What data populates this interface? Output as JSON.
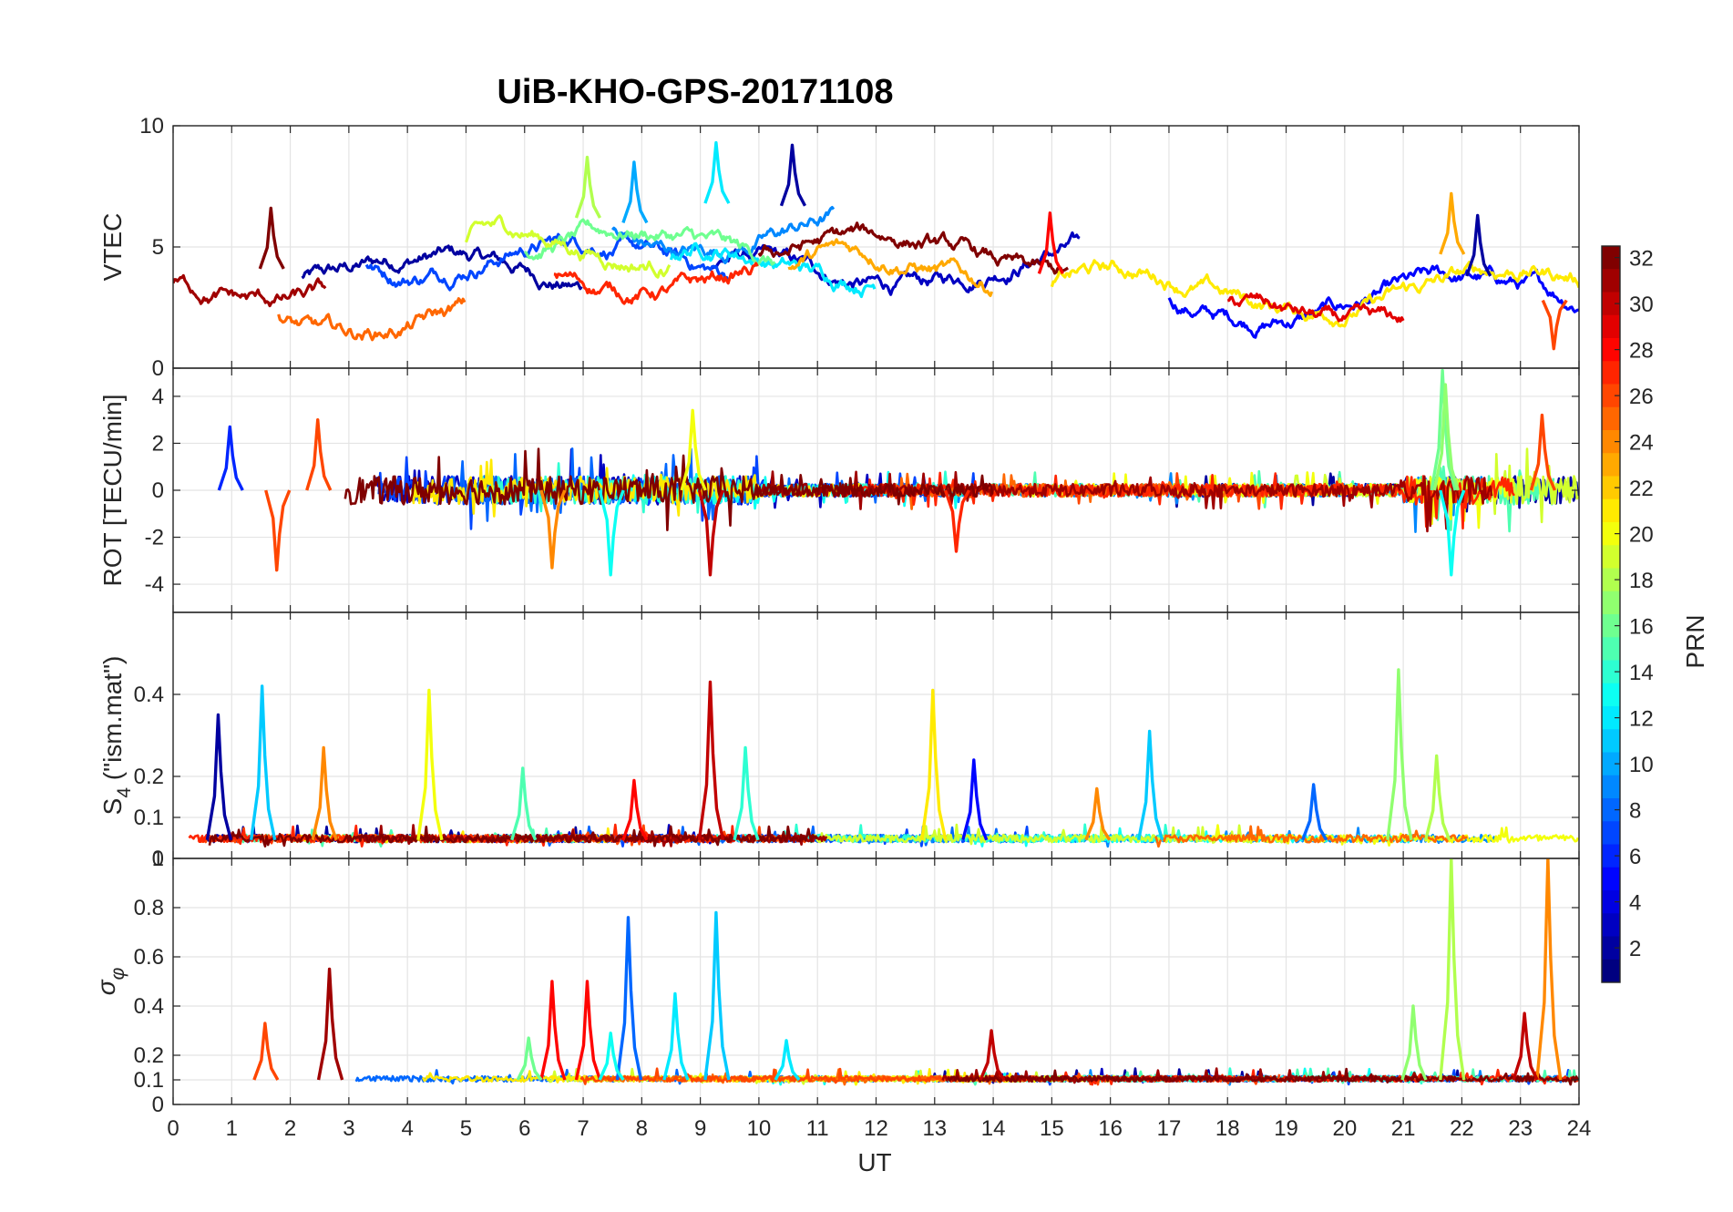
{
  "chart_data": {
    "type": "line",
    "title": "UiB-KHO-GPS-20171108",
    "xlabel": "UT",
    "xlim": [
      0,
      24
    ],
    "xticks": [
      "0",
      "1",
      "2",
      "3",
      "4",
      "5",
      "6",
      "7",
      "8",
      "9",
      "10",
      "11",
      "12",
      "13",
      "14",
      "15",
      "16",
      "17",
      "18",
      "19",
      "20",
      "21",
      "22",
      "23",
      "24"
    ],
    "panels": [
      {
        "name": "vtec",
        "ylabel": "VTEC",
        "ylim": [
          0,
          10
        ],
        "yticks": [
          0,
          5,
          10
        ],
        "ytick_labels": [
          "0",
          "5",
          "10"
        ],
        "baseline": 3.4,
        "noise": 0.7,
        "series": [
          {
            "prn": 2,
            "start": 2.2,
            "end": 7.0,
            "level": 3.8
          },
          {
            "prn": 3,
            "start": 9.2,
            "end": 15.5,
            "level": 4.2
          },
          {
            "prn": 5,
            "start": 17.0,
            "end": 24.0,
            "level": 2.8
          },
          {
            "prn": 7,
            "start": 3.3,
            "end": 9.5,
            "level": 4.4
          },
          {
            "prn": 9,
            "start": 7.5,
            "end": 11.3,
            "level": 5.6
          },
          {
            "prn": 12,
            "start": 8.5,
            "end": 12.0,
            "level": 4.5
          },
          {
            "prn": 16,
            "start": 6.0,
            "end": 10.3,
            "level": 4.8
          },
          {
            "prn": 19,
            "start": 5.0,
            "end": 8.5,
            "level": 5.2
          },
          {
            "prn": 21,
            "start": 15.0,
            "end": 24.0,
            "level": 3.2
          },
          {
            "prn": 23,
            "start": 10.5,
            "end": 14.0,
            "level": 4.0
          },
          {
            "prn": 25,
            "start": 1.8,
            "end": 5.0,
            "level": 2.2
          },
          {
            "prn": 27,
            "start": 6.5,
            "end": 10.0,
            "level": 4.0
          },
          {
            "prn": 29,
            "start": 18.0,
            "end": 21.0,
            "level": 2.6
          },
          {
            "prn": 31,
            "start": 0.0,
            "end": 2.6,
            "level": 3.6
          },
          {
            "prn": 32,
            "start": 10.0,
            "end": 15.3,
            "level": 4.6
          }
        ],
        "peaks": [
          {
            "prn": 2,
            "t": 10.6,
            "v": 9.2
          },
          {
            "prn": 12,
            "t": 9.3,
            "v": 9.3
          },
          {
            "prn": 18,
            "t": 7.1,
            "v": 8.7
          },
          {
            "prn": 10,
            "t": 7.9,
            "v": 8.5
          },
          {
            "prn": 23,
            "t": 21.85,
            "v": 7.2
          },
          {
            "prn": 32,
            "t": 1.7,
            "v": 6.6
          },
          {
            "prn": 28,
            "t": 15.0,
            "v": 6.4
          },
          {
            "prn": 2,
            "t": 22.3,
            "v": 6.3
          },
          {
            "prn": 26,
            "t": 23.6,
            "v": 0.8
          }
        ]
      },
      {
        "name": "rot",
        "ylabel": "ROT [TECU/min]",
        "ylim": [
          -5.2,
          5.2
        ],
        "yticks": [
          -4,
          -2,
          0,
          2,
          4
        ],
        "ytick_labels": [
          "-4",
          "-2",
          "0",
          "2",
          "4"
        ],
        "baseline": 0,
        "noise": 0.6,
        "peaks": [
          {
            "prn": 16,
            "t": 21.7,
            "v": 5.1
          },
          {
            "prn": 17,
            "t": 21.75,
            "v": 4.5
          },
          {
            "prn": 26,
            "t": 23.4,
            "v": 3.2
          },
          {
            "prn": 20,
            "t": 8.9,
            "v": 3.4
          },
          {
            "prn": 30,
            "t": 9.2,
            "v": -3.6
          },
          {
            "prn": 13,
            "t": 21.85,
            "v": -3.6
          },
          {
            "prn": 13,
            "t": 7.5,
            "v": -3.6
          },
          {
            "prn": 26,
            "t": 1.8,
            "v": -3.4
          },
          {
            "prn": 24,
            "t": 6.5,
            "v": -3.3
          },
          {
            "prn": 26,
            "t": 2.5,
            "v": 3.0
          },
          {
            "prn": 6,
            "t": 1.0,
            "v": 2.7
          },
          {
            "prn": 27,
            "t": 13.4,
            "v": -2.6
          }
        ]
      },
      {
        "name": "s4",
        "ylabel": "S4 (\"ism.mat\")",
        "ylabel_main": "S",
        "ylabel_sub": "4",
        "ylabel_rest": " (\"ism.mat\")",
        "ylim": [
          0,
          0.6
        ],
        "yticks": [
          0,
          0.1,
          0.2,
          0.4
        ],
        "ytick_labels": [
          "0",
          "0.1",
          "0.2",
          "0.4"
        ],
        "baseline": 0.045,
        "noise": 0.018,
        "peaks": [
          {
            "prn": 30,
            "t": 9.2,
            "v": 0.43
          },
          {
            "prn": 17,
            "t": 20.95,
            "v": 0.46
          },
          {
            "prn": 11,
            "t": 1.55,
            "v": 0.42
          },
          {
            "prn": 21,
            "t": 13.0,
            "v": 0.41
          },
          {
            "prn": 20,
            "t": 4.4,
            "v": 0.41
          },
          {
            "prn": 2,
            "t": 0.8,
            "v": 0.35
          },
          {
            "prn": 11,
            "t": 16.7,
            "v": 0.31
          },
          {
            "prn": 24,
            "t": 2.6,
            "v": 0.27
          },
          {
            "prn": 14,
            "t": 9.8,
            "v": 0.27
          },
          {
            "prn": 18,
            "t": 21.6,
            "v": 0.25
          },
          {
            "prn": 5,
            "t": 13.7,
            "v": 0.24
          },
          {
            "prn": 15,
            "t": 6.0,
            "v": 0.22
          },
          {
            "prn": 28,
            "t": 7.9,
            "v": 0.19
          },
          {
            "prn": 8,
            "t": 19.5,
            "v": 0.18
          },
          {
            "prn": 24,
            "t": 15.8,
            "v": 0.17
          }
        ]
      },
      {
        "name": "sigma_phi",
        "ylabel": "σφ",
        "ylabel_main": "σ",
        "ylabel_sub": "φ",
        "ylim": [
          0,
          1.0
        ],
        "yticks": [
          0,
          0.1,
          0.2,
          0.4,
          0.6,
          0.8
        ],
        "ytick_labels": [
          "0",
          "0.1",
          "0.2",
          "0.4",
          "0.6",
          "0.8"
        ],
        "top_label": "1",
        "baseline": 0.1,
        "noise": 0.022,
        "peaks": [
          {
            "prn": 18,
            "t": 21.85,
            "v": 1.0
          },
          {
            "prn": 24,
            "t": 23.5,
            "v": 1.0
          },
          {
            "prn": 11,
            "t": 9.3,
            "v": 0.78
          },
          {
            "prn": 8,
            "t": 7.8,
            "v": 0.76
          },
          {
            "prn": 31,
            "t": 2.7,
            "v": 0.55
          },
          {
            "prn": 28,
            "t": 6.5,
            "v": 0.5
          },
          {
            "prn": 28,
            "t": 7.1,
            "v": 0.5
          },
          {
            "prn": 12,
            "t": 8.6,
            "v": 0.45
          },
          {
            "prn": 17,
            "t": 21.2,
            "v": 0.4
          },
          {
            "prn": 30,
            "t": 23.1,
            "v": 0.37
          },
          {
            "prn": 26,
            "t": 1.6,
            "v": 0.33
          },
          {
            "prn": 30,
            "t": 14.0,
            "v": 0.3
          },
          {
            "prn": 13,
            "t": 7.5,
            "v": 0.29
          },
          {
            "prn": 16,
            "t": 6.1,
            "v": 0.27
          },
          {
            "prn": 12,
            "t": 10.5,
            "v": 0.26
          }
        ]
      }
    ],
    "colorbar": {
      "label": "PRN",
      "colormap": "jet",
      "min": 1,
      "max": 32,
      "ticks": [
        2,
        4,
        6,
        8,
        10,
        12,
        14,
        16,
        18,
        20,
        22,
        24,
        26,
        28,
        30,
        32
      ],
      "tick_labels": [
        "2",
        "4",
        "6",
        "8",
        "10",
        "12",
        "14",
        "16",
        "18",
        "20",
        "22",
        "24",
        "26",
        "28",
        "30",
        "32"
      ]
    },
    "grid": true
  }
}
